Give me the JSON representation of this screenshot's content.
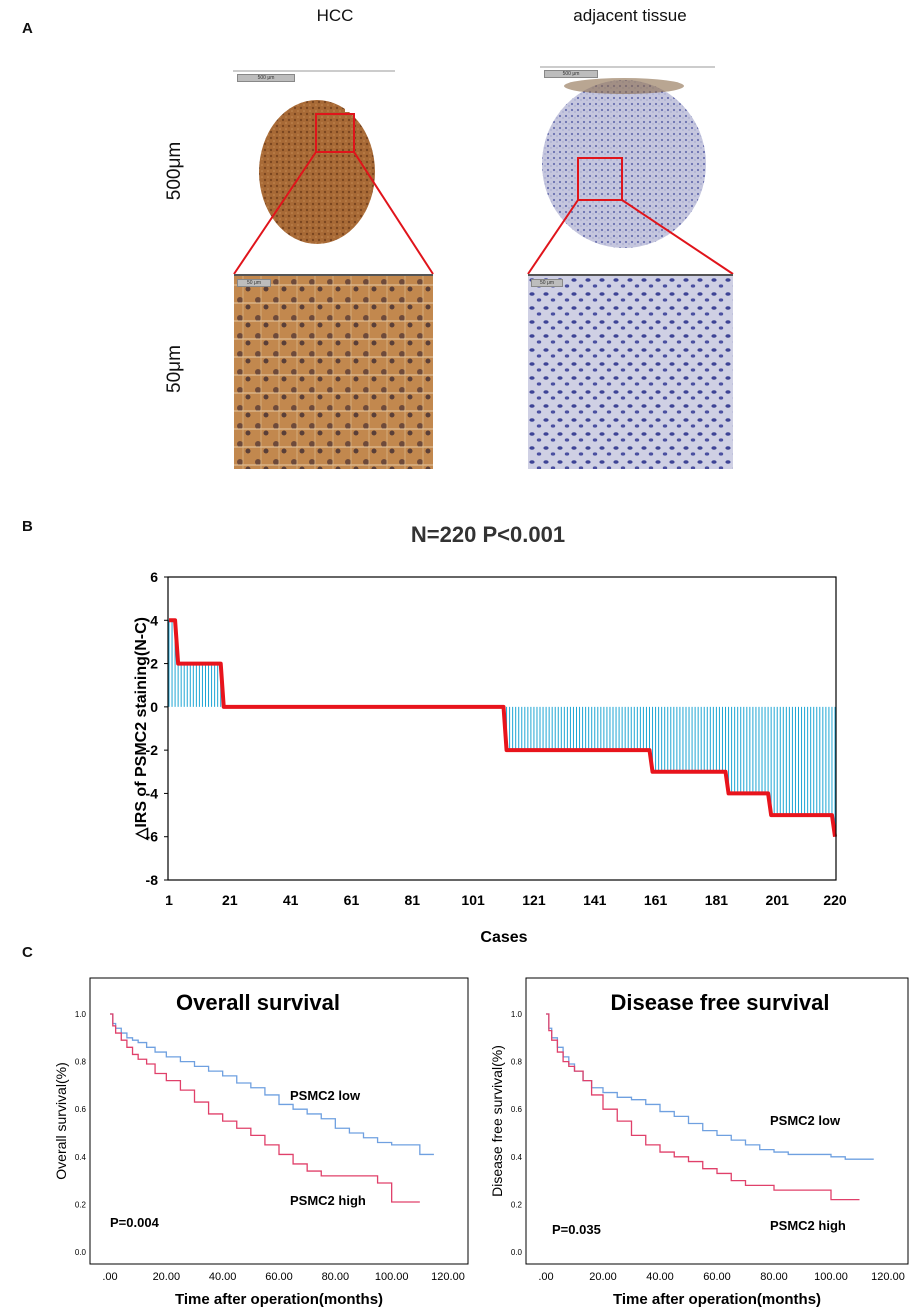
{
  "panelA": {
    "letter": "A",
    "col_hcc": "HCC",
    "col_adjacent": "adjacent tissue",
    "row_top": "500μm",
    "row_bottom": "50μm",
    "scalebar_top_hcc": "500 μm",
    "scalebar_top_adj": "500 μm",
    "scalebar_bottom_hcc": "50 μm",
    "scalebar_bottom_adj": "50 μm",
    "colors": {
      "hcc_stain": "#a0602e",
      "adj_stain": "#7f86c2",
      "highlight": "#e0141b"
    }
  },
  "panelB": {
    "letter": "B",
    "chart_data": {
      "type": "bar",
      "title": "N=220   P<0.001",
      "xlabel": "Cases",
      "ylabel": "△IRS of PSMC2 staining(N-C)",
      "ylim": [
        -8,
        6
      ],
      "yticks": [
        6,
        4,
        2,
        0,
        -2,
        -4,
        -6,
        -8
      ],
      "xticks": [
        "1",
        "21",
        "41",
        "61",
        "81",
        "101",
        "121",
        "141",
        "161",
        "181",
        "201",
        "220"
      ],
      "n": 220,
      "segments": [
        {
          "from": 1,
          "to": 3,
          "value": 4
        },
        {
          "from": 4,
          "to": 18,
          "value": 2
        },
        {
          "from": 19,
          "to": 111,
          "value": 0
        },
        {
          "from": 112,
          "to": 159,
          "value": -2
        },
        {
          "from": 160,
          "to": 184,
          "value": -3
        },
        {
          "from": 185,
          "to": 198,
          "value": -4
        },
        {
          "from": 199,
          "to": 219,
          "value": -5
        },
        {
          "from": 220,
          "to": 220,
          "value": -6
        }
      ],
      "bar_color": "#1ea6d4",
      "line_color": "#e8141c"
    }
  },
  "panelC": {
    "letter": "C",
    "chart_data": [
      {
        "type": "line",
        "title": "Overall survival",
        "xlabel": "Time after operation(months)",
        "ylabel": "Overall survival(%)",
        "xlim": [
          0,
          120
        ],
        "ylim": [
          0,
          1
        ],
        "xticks": [
          ".00",
          "20.00",
          "40.00",
          "60.00",
          "80.00",
          "100.00",
          "120.00"
        ],
        "yticks": [
          "1.0",
          "0.8",
          "0.6",
          "0.4",
          "0.2",
          "0.0"
        ],
        "pvalue": "P=0.004",
        "series": [
          {
            "name": "PSMC2  low",
            "color": "#6fa0e0",
            "x": [
              0,
              1,
              2,
              4,
              6,
              8,
              10,
              13,
              16,
              20,
              25,
              30,
              35,
              40,
              45,
              50,
              55,
              60,
              65,
              70,
              75,
              80,
              85,
              90,
              95,
              100,
              105,
              110,
              115
            ],
            "y": [
              1.0,
              0.96,
              0.94,
              0.92,
              0.9,
              0.89,
              0.88,
              0.86,
              0.84,
              0.82,
              0.8,
              0.78,
              0.76,
              0.74,
              0.71,
              0.69,
              0.66,
              0.62,
              0.6,
              0.58,
              0.56,
              0.52,
              0.5,
              0.48,
              0.46,
              0.45,
              0.45,
              0.41,
              0.41
            ]
          },
          {
            "name": "PSMC2  high",
            "color": "#e0406a",
            "x": [
              0,
              1,
              2,
              4,
              6,
              8,
              10,
              13,
              16,
              20,
              25,
              30,
              35,
              40,
              45,
              50,
              55,
              60,
              65,
              70,
              75,
              80,
              85,
              90,
              95,
              100,
              105,
              110
            ],
            "y": [
              1.0,
              0.95,
              0.92,
              0.89,
              0.86,
              0.83,
              0.81,
              0.79,
              0.75,
              0.72,
              0.68,
              0.63,
              0.58,
              0.55,
              0.52,
              0.49,
              0.45,
              0.41,
              0.37,
              0.34,
              0.32,
              0.32,
              0.32,
              0.32,
              0.29,
              0.21,
              0.21,
              0.21
            ]
          }
        ]
      },
      {
        "type": "line",
        "title": "Disease free survival",
        "xlabel": "Time after operation(months)",
        "ylabel": "Disease free survival(%)",
        "xlim": [
          0,
          120
        ],
        "ylim": [
          0,
          1
        ],
        "xticks": [
          ".00",
          "20.00",
          "40.00",
          "60.00",
          "80.00",
          "100.00",
          "120.00"
        ],
        "yticks": [
          "1.0",
          "0.8",
          "0.6",
          "0.4",
          "0.2",
          "0.0"
        ],
        "pvalue": "P=0.035",
        "series": [
          {
            "name": "PSMC2  low",
            "color": "#6fa0e0",
            "x": [
              0,
              1,
              2,
              4,
              6,
              8,
              10,
              13,
              16,
              20,
              25,
              30,
              35,
              40,
              45,
              50,
              55,
              60,
              65,
              70,
              75,
              80,
              85,
              90,
              95,
              100,
              105,
              110,
              115
            ],
            "y": [
              1.0,
              0.94,
              0.9,
              0.86,
              0.82,
              0.79,
              0.76,
              0.72,
              0.69,
              0.67,
              0.65,
              0.64,
              0.62,
              0.59,
              0.57,
              0.54,
              0.51,
              0.49,
              0.47,
              0.45,
              0.43,
              0.42,
              0.41,
              0.41,
              0.41,
              0.4,
              0.39,
              0.39,
              0.39
            ]
          },
          {
            "name": "PSMC2  high",
            "color": "#e0406a",
            "x": [
              0,
              1,
              2,
              4,
              6,
              8,
              10,
              13,
              16,
              20,
              25,
              30,
              35,
              40,
              45,
              50,
              55,
              60,
              65,
              70,
              75,
              80,
              85,
              90,
              95,
              100,
              105,
              110
            ],
            "y": [
              1.0,
              0.93,
              0.89,
              0.84,
              0.8,
              0.78,
              0.76,
              0.72,
              0.66,
              0.6,
              0.55,
              0.49,
              0.45,
              0.42,
              0.4,
              0.38,
              0.35,
              0.33,
              0.3,
              0.28,
              0.28,
              0.26,
              0.26,
              0.26,
              0.26,
              0.22,
              0.22,
              0.22
            ]
          }
        ]
      }
    ]
  }
}
